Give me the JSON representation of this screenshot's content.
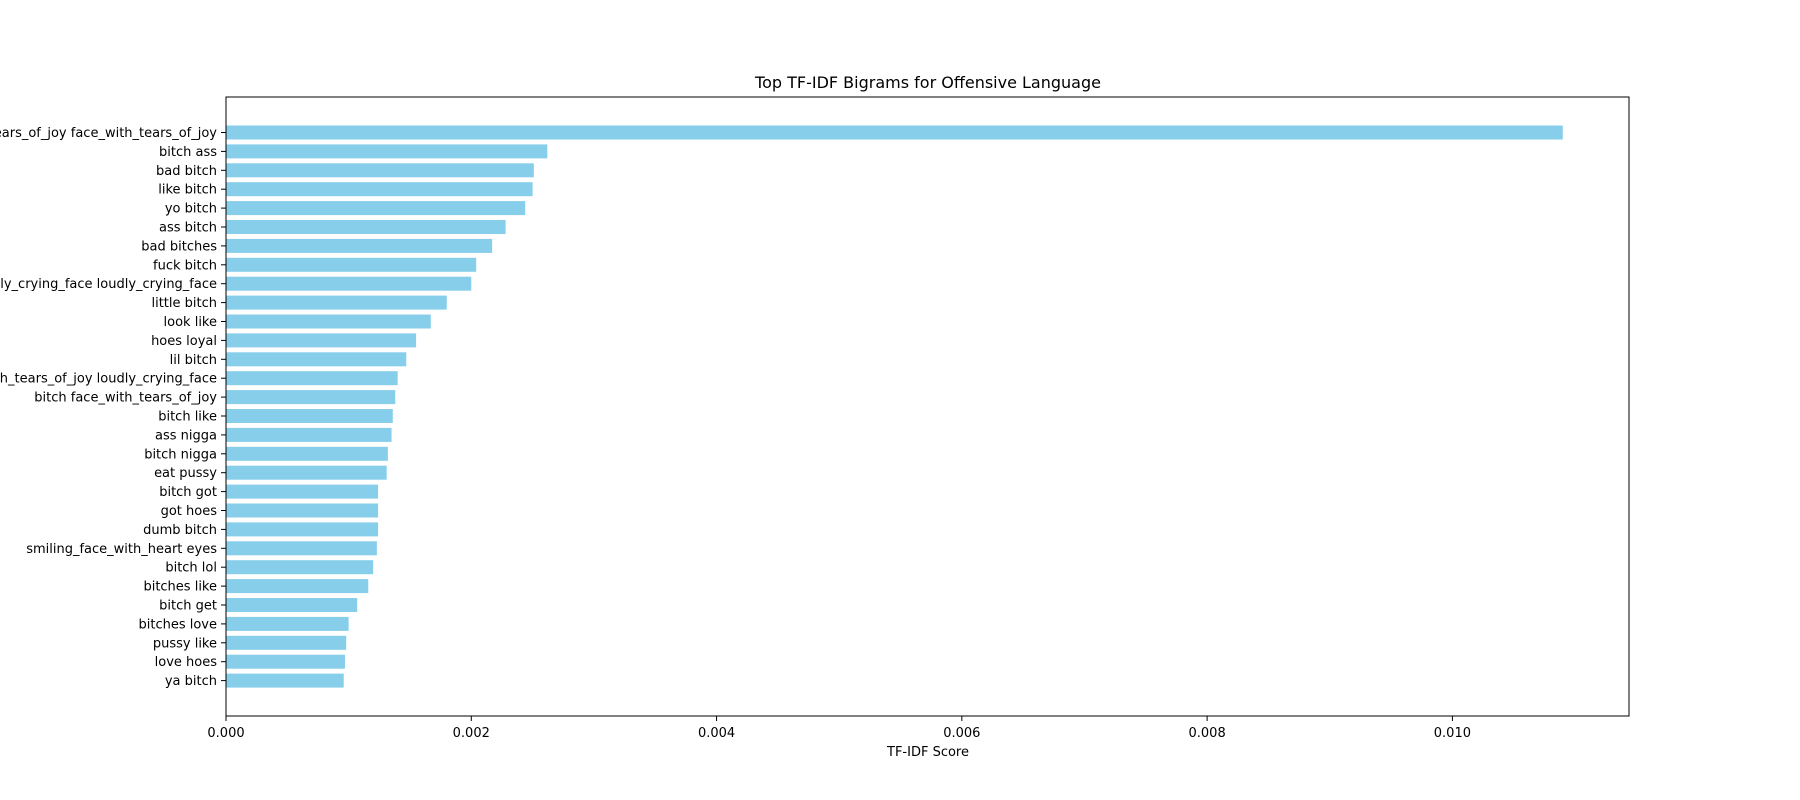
{
  "chart_data": {
    "type": "bar",
    "orientation": "horizontal",
    "title": "Top TF-IDF Bigrams for Offensive Language",
    "xlabel": "TF-IDF Score",
    "ylabel": "",
    "xlim": [
      0,
      0.01144
    ],
    "x_ticks": [
      "0.000",
      "0.002",
      "0.004",
      "0.006",
      "0.008",
      "0.010"
    ],
    "x_tick_values": [
      0,
      0.002,
      0.004,
      0.006,
      0.008,
      0.01
    ],
    "grid": false,
    "bar_color": "#87ceeb",
    "categories": [
      "face_with_tears_of_joy face_with_tears_of_joy",
      "bitch ass",
      "bad bitch",
      "like bitch",
      "yo bitch",
      "ass bitch",
      "bad bitches",
      "fuck bitch",
      "loudly_crying_face loudly_crying_face",
      "little bitch",
      "look like",
      "hoes loyal",
      "lil bitch",
      "face_with_tears_of_joy loudly_crying_face",
      "bitch face_with_tears_of_joy",
      "bitch like",
      "ass nigga",
      "bitch nigga",
      "eat pussy",
      "bitch got",
      "got hoes",
      "dumb bitch",
      "smiling_face_with_heart eyes",
      "bitch lol",
      "bitches like",
      "bitch get",
      "bitches love",
      "pussy like",
      "love hoes",
      "ya bitch"
    ],
    "values": [
      0.0109,
      0.00262,
      0.00251,
      0.0025,
      0.00244,
      0.00228,
      0.00217,
      0.00204,
      0.002,
      0.0018,
      0.00167,
      0.00155,
      0.00147,
      0.0014,
      0.00138,
      0.00136,
      0.00135,
      0.00132,
      0.00131,
      0.00124,
      0.00124,
      0.00124,
      0.00123,
      0.0012,
      0.00116,
      0.00107,
      0.001,
      0.00098,
      0.00097,
      0.00096
    ]
  }
}
